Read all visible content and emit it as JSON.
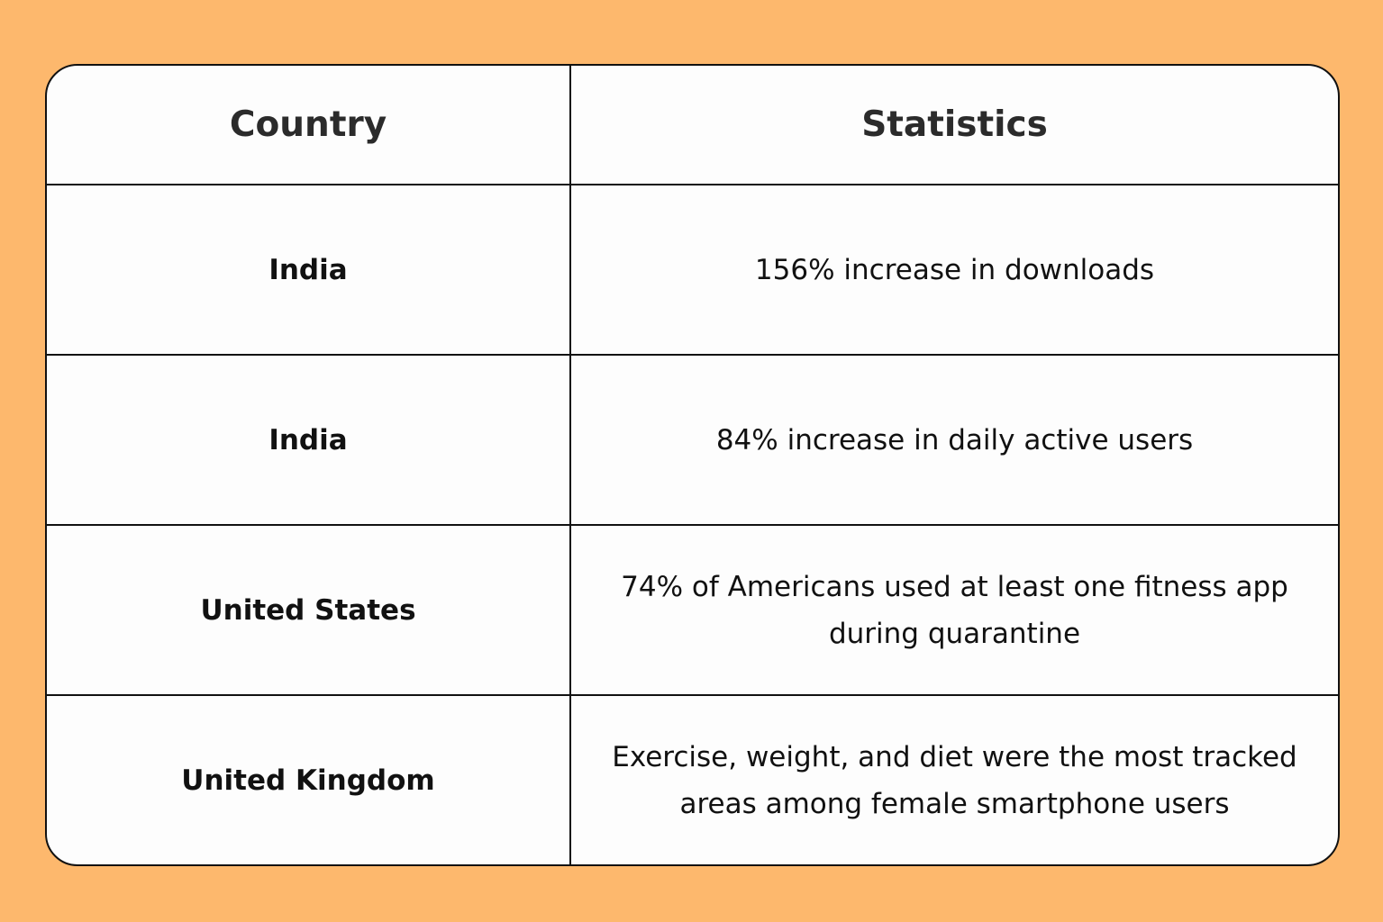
{
  "colors": {
    "background": "#FDB86D",
    "table_background": "#FDFDFD",
    "border": "#111111",
    "text": "#111111"
  },
  "table": {
    "headers": {
      "country": "Country",
      "statistics": "Statistics"
    },
    "rows": [
      {
        "country": "India",
        "statistic": "156% increase in downloads"
      },
      {
        "country": "India",
        "statistic": "84% increase in daily active users"
      },
      {
        "country": "United States",
        "statistic": "74% of Americans used at least one fitness app during quarantine"
      },
      {
        "country": "United Kingdom",
        "statistic": "Exercise, weight, and diet were the most tracked areas among female smartphone users"
      }
    ]
  }
}
